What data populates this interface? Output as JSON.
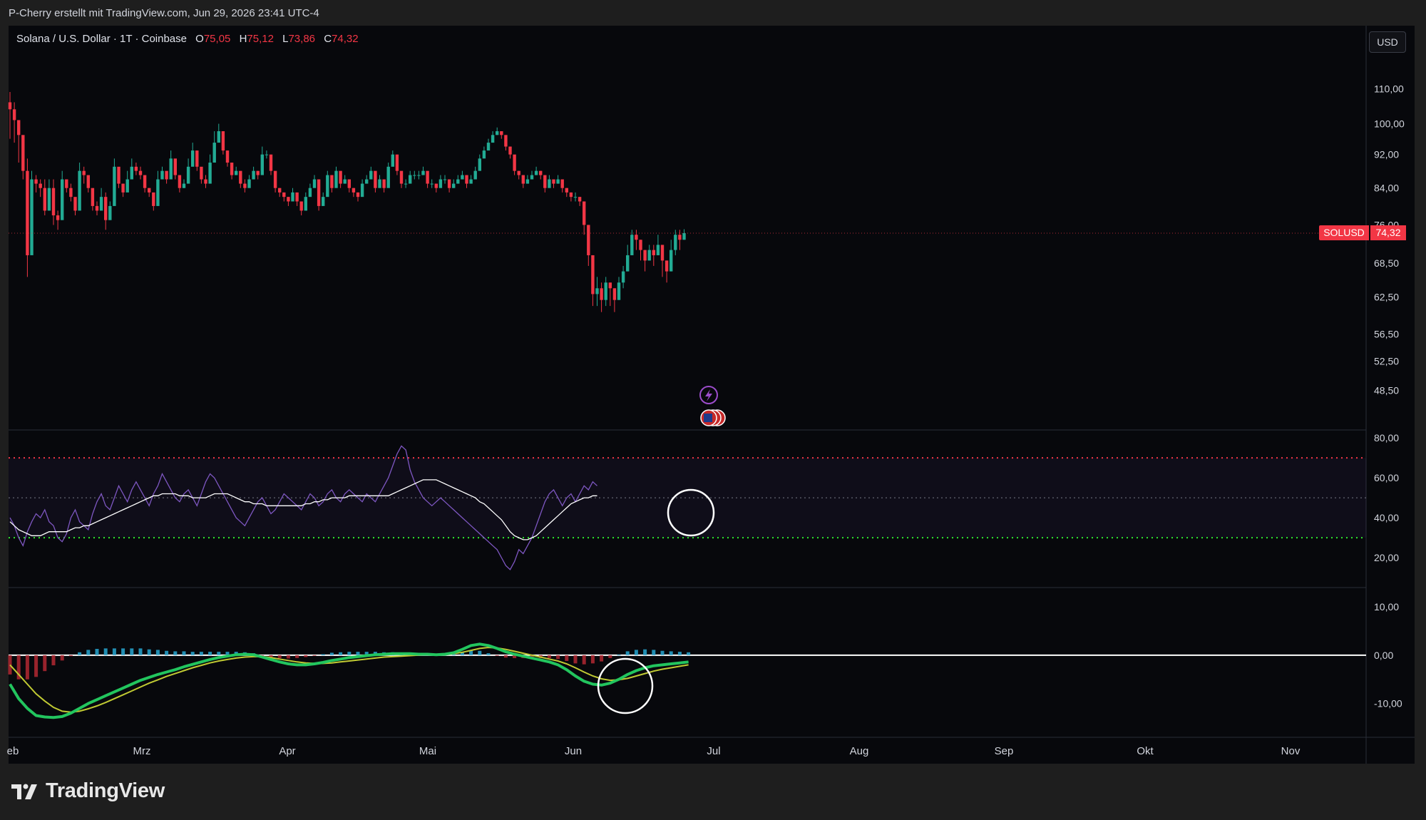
{
  "header": {
    "credit": "P-Cherry erstellt mit TradingView.com, Jun 29, 2026 23:41 UTC-4"
  },
  "legend": {
    "symbol": "Solana / U.S. Dollar · 1T · Coinbase",
    "open_label": "O",
    "open": "75,05",
    "high_label": "H",
    "high": "75,12",
    "low_label": "L",
    "low": "73,86",
    "close_label": "C",
    "close": "74,32"
  },
  "currency_button": "USD",
  "last_price": {
    "symbol": "SOLUSD",
    "value": "74,32"
  },
  "brand": {
    "name": "TradingView"
  },
  "colors": {
    "up": "#22ab94",
    "down": "#f23645",
    "rsi": "#7e57c2",
    "rsi_ma": "#ffffff",
    "macd": "#22c55e",
    "signal": "#c0ca33"
  },
  "chart_data": [
    {
      "type": "candlestick",
      "title": "Solana / U.S. Dollar · 1T · Coinbase",
      "y_ticks": [
        "110,00",
        "100,00",
        "92,00",
        "84,00",
        "76,00",
        "68,50",
        "62,50",
        "56,50",
        "52,50",
        "48,50"
      ],
      "x_ticks": [
        "eb",
        "Mrz",
        "Apr",
        "Mai",
        "Jun",
        "Jul",
        "Aug",
        "Sep",
        "Okt",
        "Nov"
      ],
      "ylim": [
        46,
        118
      ],
      "scale": "log",
      "last": 74.32,
      "close": [
        104,
        101,
        97,
        88,
        70,
        86,
        85,
        84,
        79,
        84,
        78,
        77,
        86,
        84,
        82,
        79,
        88,
        87,
        84,
        80,
        79,
        82,
        77,
        80,
        89,
        85,
        83,
        86,
        89,
        88,
        87,
        84,
        83,
        80,
        86,
        88,
        86,
        91,
        87,
        84,
        85,
        89,
        93,
        89,
        86,
        85,
        90,
        95,
        98,
        93,
        90,
        87,
        88,
        85,
        84,
        86,
        88,
        87,
        92,
        92,
        88,
        84,
        83,
        82,
        81,
        83,
        81,
        79,
        82,
        84,
        86,
        80,
        82,
        87,
        84,
        88,
        85,
        86,
        84,
        83,
        82,
        85,
        86,
        88,
        84,
        86,
        84,
        89,
        92,
        88,
        85,
        85,
        87,
        87,
        87,
        88,
        85,
        85,
        84,
        86,
        86,
        84,
        85,
        86,
        87,
        85,
        86,
        88,
        91,
        93,
        95,
        97,
        98,
        97,
        94,
        92,
        88,
        87,
        85,
        86,
        87,
        88,
        87,
        84,
        86,
        85,
        86,
        84,
        83,
        82,
        82,
        81,
        76,
        70,
        63,
        64,
        62,
        65,
        64,
        62,
        65,
        67,
        70,
        74,
        73,
        71,
        69,
        71,
        70,
        72,
        69,
        67,
        71,
        74,
        73,
        74.32
      ],
      "wick": [
        [
          96,
          109
        ],
        [
          95,
          106
        ],
        [
          90,
          99
        ],
        [
          86,
          92
        ],
        [
          66,
          91
        ],
        [
          84,
          88
        ],
        [
          83,
          87
        ],
        [
          82,
          86
        ],
        [
          78,
          86
        ],
        [
          82,
          86
        ],
        [
          76,
          86
        ],
        [
          75,
          79
        ],
        [
          83,
          88
        ],
        [
          83,
          86
        ],
        [
          81,
          85
        ],
        [
          78,
          81
        ],
        [
          86,
          90
        ],
        [
          85,
          89
        ],
        [
          83,
          86
        ],
        [
          79,
          82
        ],
        [
          78,
          81
        ],
        [
          81,
          84
        ],
        [
          75,
          83
        ],
        [
          78,
          81
        ],
        [
          87,
          91
        ],
        [
          84,
          86
        ],
        [
          82,
          85
        ],
        [
          85,
          88
        ],
        [
          88,
          91
        ],
        [
          87,
          90
        ],
        [
          86,
          89
        ],
        [
          83,
          86
        ],
        [
          82,
          84
        ],
        [
          79,
          82
        ],
        [
          85,
          88
        ],
        [
          87,
          89
        ],
        [
          85,
          87
        ],
        [
          90,
          93
        ],
        [
          86,
          89
        ],
        [
          83,
          86
        ],
        [
          84,
          86
        ],
        [
          88,
          91
        ],
        [
          92,
          95
        ],
        [
          88,
          91
        ],
        [
          85,
          88
        ],
        [
          84,
          87
        ],
        [
          89,
          92
        ],
        [
          94,
          98
        ],
        [
          97,
          100
        ],
        [
          92,
          95
        ],
        [
          89,
          92
        ],
        [
          86,
          89
        ],
        [
          87,
          89
        ],
        [
          84,
          87
        ],
        [
          83,
          86
        ],
        [
          85,
          87
        ],
        [
          87,
          89
        ],
        [
          86,
          88
        ],
        [
          91,
          94
        ],
        [
          91,
          93
        ],
        [
          87,
          90
        ],
        [
          83,
          86
        ],
        [
          82,
          84
        ],
        [
          81,
          83
        ],
        [
          80,
          82
        ],
        [
          82,
          84
        ],
        [
          80,
          82
        ],
        [
          78,
          81
        ],
        [
          81,
          83
        ],
        [
          83,
          85
        ],
        [
          85,
          87
        ],
        [
          79,
          82
        ],
        [
          81,
          83
        ],
        [
          86,
          88
        ],
        [
          83,
          86
        ],
        [
          87,
          89
        ],
        [
          84,
          87
        ],
        [
          85,
          87
        ],
        [
          83,
          86
        ],
        [
          82,
          84
        ],
        [
          81,
          83
        ],
        [
          84,
          86
        ],
        [
          85,
          87
        ],
        [
          87,
          89
        ],
        [
          83,
          86
        ],
        [
          85,
          87
        ],
        [
          83,
          86
        ],
        [
          88,
          90
        ],
        [
          91,
          93
        ],
        [
          87,
          90
        ],
        [
          84,
          87
        ],
        [
          84,
          86
        ],
        [
          86,
          88
        ],
        [
          86,
          88
        ],
        [
          86,
          88
        ],
        [
          87,
          89
        ],
        [
          84,
          87
        ],
        [
          84,
          86
        ],
        [
          83,
          85
        ],
        [
          85,
          87
        ],
        [
          85,
          87
        ],
        [
          83,
          86
        ],
        [
          84,
          86
        ],
        [
          85,
          87
        ],
        [
          86,
          88
        ],
        [
          84,
          87
        ],
        [
          85,
          87
        ],
        [
          87,
          89
        ],
        [
          90,
          92
        ],
        [
          92,
          94
        ],
        [
          94,
          96
        ],
        [
          96,
          98
        ],
        [
          97,
          99
        ],
        [
          96,
          98
        ],
        [
          93,
          96
        ],
        [
          91,
          94
        ],
        [
          87,
          90
        ],
        [
          86,
          88
        ],
        [
          84,
          87
        ],
        [
          85,
          87
        ],
        [
          86,
          88
        ],
        [
          87,
          89
        ],
        [
          86,
          88
        ],
        [
          83,
          86
        ],
        [
          85,
          87
        ],
        [
          84,
          86
        ],
        [
          85,
          87
        ],
        [
          83,
          86
        ],
        [
          82,
          84
        ],
        [
          81,
          83
        ],
        [
          81,
          83
        ],
        [
          80,
          82
        ],
        [
          74,
          81
        ],
        [
          68,
          76
        ],
        [
          61,
          70
        ],
        [
          61,
          66
        ],
        [
          60,
          65
        ],
        [
          61,
          66
        ],
        [
          61,
          65
        ],
        [
          60,
          64
        ],
        [
          62,
          66
        ],
        [
          64,
          68
        ],
        [
          67,
          72
        ],
        [
          70,
          75
        ],
        [
          71,
          75
        ],
        [
          69,
          73
        ],
        [
          67,
          71
        ],
        [
          69,
          72
        ],
        [
          68,
          72
        ],
        [
          70,
          74
        ],
        [
          66,
          71
        ],
        [
          65,
          69
        ],
        [
          67,
          73
        ],
        [
          70,
          75
        ],
        [
          71,
          75
        ],
        [
          73,
          75.12
        ]
      ]
    },
    {
      "type": "line",
      "title": "RSI",
      "y_ticks": [
        "80,00",
        "60,00",
        "40,00",
        "20,00"
      ],
      "ylim": [
        5,
        84
      ],
      "levels": [
        70,
        50,
        30
      ],
      "series": [
        {
          "values": [
            40,
            36,
            30,
            26,
            33,
            38,
            42,
            40,
            44,
            38,
            36,
            30,
            28,
            32,
            40,
            44,
            38,
            36,
            34,
            42,
            48,
            52,
            46,
            44,
            50,
            56,
            52,
            48,
            54,
            58,
            54,
            50,
            46,
            52,
            56,
            62,
            58,
            54,
            50,
            48,
            52,
            54,
            50,
            46,
            52,
            58,
            62,
            60,
            56,
            52,
            48,
            44,
            40,
            38,
            36,
            40,
            44,
            48,
            50,
            46,
            42,
            44,
            48,
            52,
            50,
            48,
            46,
            44,
            48,
            52,
            50,
            46,
            48,
            52,
            54,
            50,
            48,
            52,
            54,
            52,
            50,
            48,
            52,
            50,
            48,
            52,
            56,
            60,
            66,
            72,
            76,
            74,
            64,
            58,
            54,
            50,
            48,
            46,
            48,
            50,
            48,
            46,
            44,
            42,
            40,
            38,
            36,
            34,
            32,
            30,
            28,
            26,
            24,
            20,
            16,
            14,
            18,
            24,
            22,
            26,
            30,
            36,
            42,
            48,
            52,
            54,
            50,
            46,
            50,
            52,
            48,
            52,
            56,
            54,
            58,
            56
          ]
        },
        {
          "values": [
            38,
            36,
            34,
            33,
            32,
            31,
            31,
            31,
            32,
            33,
            33,
            33,
            33,
            33,
            34,
            35,
            35,
            36,
            36,
            37,
            38,
            39,
            40,
            41,
            42,
            43,
            44,
            45,
            46,
            47,
            48,
            49,
            50,
            51,
            51,
            52,
            52,
            52,
            52,
            51,
            51,
            51,
            50,
            50,
            50,
            50,
            51,
            52,
            52,
            52,
            52,
            51,
            50,
            49,
            48,
            48,
            47,
            47,
            47,
            46,
            46,
            46,
            46,
            46,
            46,
            46,
            46,
            46,
            47,
            47,
            48,
            48,
            49,
            49,
            50,
            50,
            50,
            50,
            51,
            51,
            51,
            51,
            51,
            51,
            51,
            51,
            51,
            51,
            52,
            53,
            54,
            55,
            56,
            57,
            58,
            59,
            59,
            59,
            59,
            58,
            57,
            56,
            55,
            54,
            53,
            52,
            51,
            50,
            48,
            47,
            45,
            43,
            41,
            39,
            36,
            33,
            31,
            30,
            29,
            29,
            30,
            31,
            33,
            35,
            37,
            39,
            41,
            43,
            45,
            47,
            48,
            49,
            50,
            50,
            51,
            51
          ]
        }
      ]
    },
    {
      "type": "line",
      "title": "MACD",
      "y_ticks": [
        "10,00",
        "0,00",
        "-10,00"
      ],
      "ylim": [
        -17,
        14
      ],
      "series": [
        {
          "values": [
            -6,
            -9,
            -11,
            -12.5,
            -12.8,
            -12.9,
            -12.7,
            -12,
            -11,
            -10,
            -9.2,
            -8.4,
            -7.6,
            -6.8,
            -6,
            -5.2,
            -4.6,
            -4,
            -3.5,
            -3,
            -2.4,
            -1.9,
            -1.4,
            -0.9,
            -0.5,
            -0.2,
            0.1,
            0.2,
            0.1,
            -0.4,
            -0.9,
            -1.4,
            -1.8,
            -2,
            -2,
            -1.8,
            -1.5,
            -1.1,
            -0.8,
            -0.5,
            -0.3,
            -0.1,
            0.1,
            0.2,
            0.3,
            0.3,
            0.3,
            0.2,
            0.2,
            0.1,
            0.2,
            0.5,
            1.2,
            2,
            2.3,
            2,
            1.4,
            0.7,
            0.2,
            -0.2,
            -0.6,
            -1,
            -1.4,
            -2,
            -3,
            -4.3,
            -5.4,
            -6,
            -6.2,
            -5.8,
            -5,
            -4,
            -3.2,
            -2.6,
            -2.2,
            -2,
            -1.8,
            -1.6,
            -1.4
          ]
        },
        {
          "values": [
            -2,
            -4,
            -6,
            -8,
            -9.5,
            -10.8,
            -11.6,
            -11.8,
            -11.6,
            -11.1,
            -10.5,
            -9.8,
            -9,
            -8.2,
            -7.4,
            -6.6,
            -5.8,
            -5.1,
            -4.4,
            -3.8,
            -3.2,
            -2.6,
            -2.1,
            -1.6,
            -1.2,
            -0.9,
            -0.6,
            -0.4,
            -0.3,
            -0.3,
            -0.5,
            -0.8,
            -1.1,
            -1.4,
            -1.6,
            -1.7,
            -1.7,
            -1.6,
            -1.4,
            -1.2,
            -1,
            -0.8,
            -0.6,
            -0.4,
            -0.3,
            -0.2,
            -0.1,
            0,
            0.1,
            0.1,
            0.1,
            0.3,
            0.6,
            1,
            1.4,
            1.6,
            1.5,
            1.2,
            0.8,
            0.4,
            0,
            -0.4,
            -0.8,
            -1.2,
            -1.8,
            -2.6,
            -3.5,
            -4.3,
            -4.9,
            -5.2,
            -5.1,
            -4.8,
            -4.3,
            -3.8,
            -3.3,
            -2.9,
            -2.6,
            -2.3,
            -2
          ]
        },
        {
          "values": [
            -4,
            -5,
            -5,
            -4.5,
            -3.3,
            -2.1,
            -1.1,
            -0.2,
            0.6,
            1.1,
            1.3,
            1.4,
            1.4,
            1.4,
            1.4,
            1.4,
            1.2,
            1.1,
            0.9,
            0.8,
            0.8,
            0.7,
            0.7,
            0.7,
            0.7,
            0.7,
            0.7,
            0.6,
            0.4,
            -0.1,
            -0.4,
            -0.6,
            -0.7,
            -0.6,
            -0.4,
            -0.1,
            0.2,
            0.5,
            0.6,
            0.7,
            0.7,
            0.7,
            0.7,
            0.6,
            0.6,
            0.5,
            0.4,
            0.2,
            0.1,
            0,
            0.1,
            0.2,
            0.6,
            1,
            0.9,
            0.4,
            -0.1,
            -0.5,
            -0.6,
            -0.6,
            -0.6,
            -0.6,
            -0.6,
            -0.8,
            -1.2,
            -1.7,
            -1.9,
            -1.7,
            -1.3,
            -0.6,
            0.1,
            0.8,
            1.1,
            1.2,
            1.1,
            0.9,
            0.8,
            0.7,
            0.6
          ]
        }
      ]
    }
  ]
}
